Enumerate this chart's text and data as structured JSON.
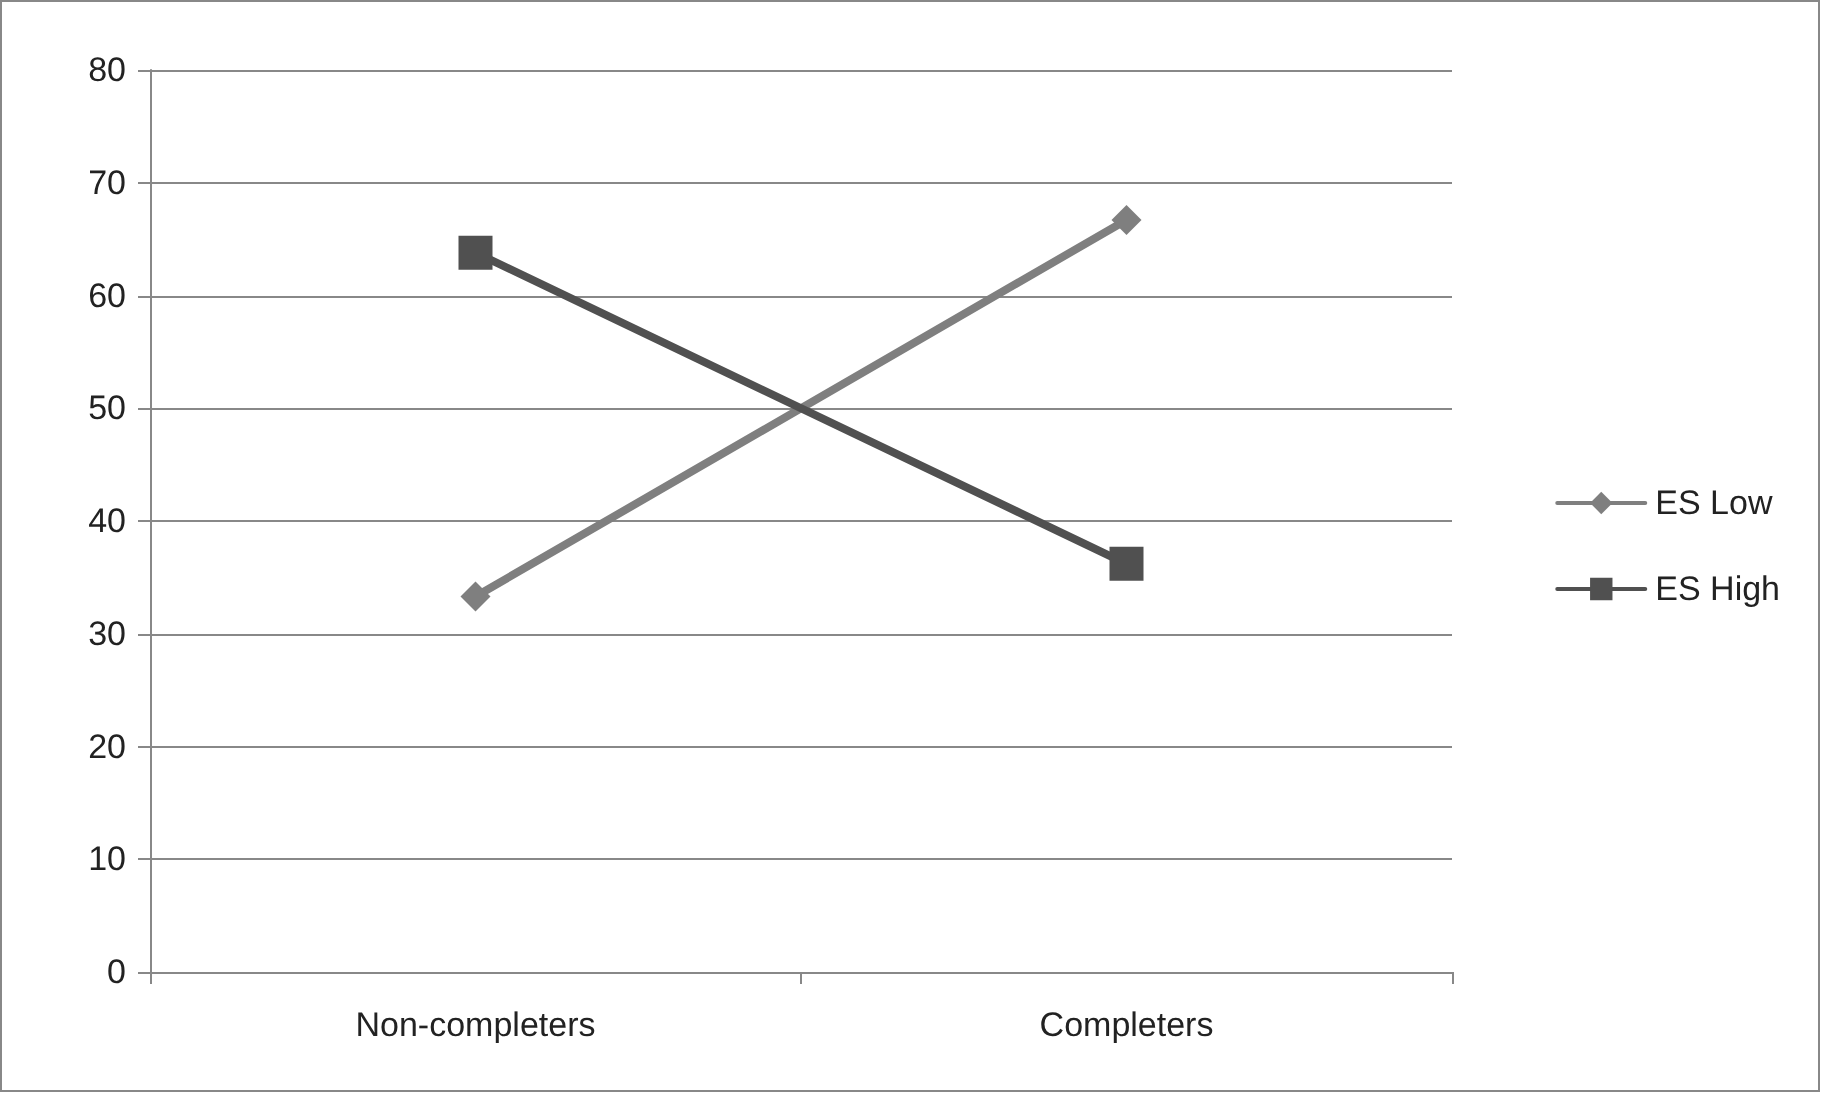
{
  "chart_data": {
    "type": "line",
    "categories": [
      "Non-completers",
      "Completers"
    ],
    "series": [
      {
        "name": "ES Low",
        "color": "#7f7f7f",
        "marker": "diamond",
        "values": [
          33.3,
          66.7
        ]
      },
      {
        "name": "ES High",
        "color": "#505050",
        "marker": "square",
        "values": [
          63.8,
          36.2
        ]
      }
    ],
    "ylim": [
      0,
      80
    ],
    "yticks": [
      0,
      10,
      20,
      30,
      40,
      50,
      60,
      70,
      80
    ],
    "grid": "y",
    "legend": "right",
    "line_style": "solid"
  }
}
